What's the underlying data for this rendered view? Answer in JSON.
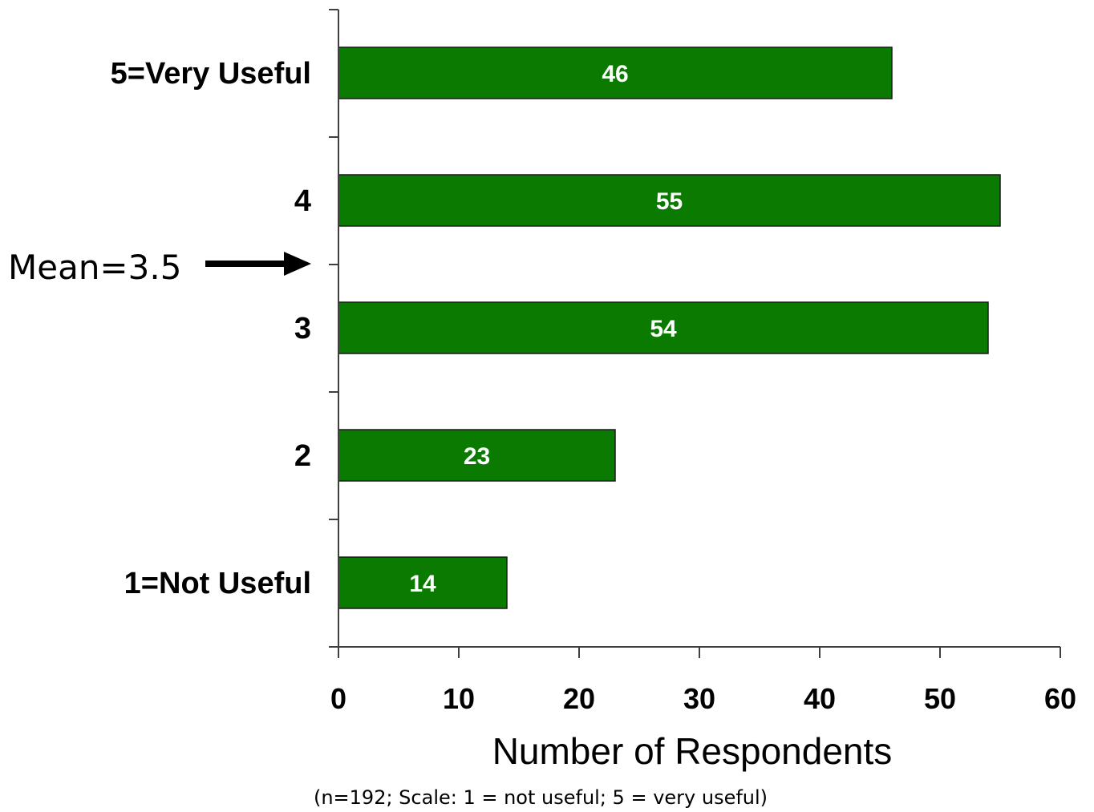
{
  "chart_data": {
    "type": "bar",
    "orientation": "horizontal",
    "categories": [
      "5=Very Useful",
      "4",
      "3",
      "2",
      "1=Not Useful"
    ],
    "values": [
      46,
      55,
      54,
      23,
      14
    ],
    "xlabel": "Number of Respondents",
    "xlim": [
      0,
      60
    ],
    "x_ticks": [
      0,
      10,
      20,
      30,
      40,
      50,
      60
    ],
    "bar_color": "#0a7a00",
    "grid": false,
    "annotation": {
      "text": "Mean=3.5",
      "points_to": 3.5
    },
    "footnote": "(n=192; Scale: 1 = not useful; 5 = very useful)"
  }
}
